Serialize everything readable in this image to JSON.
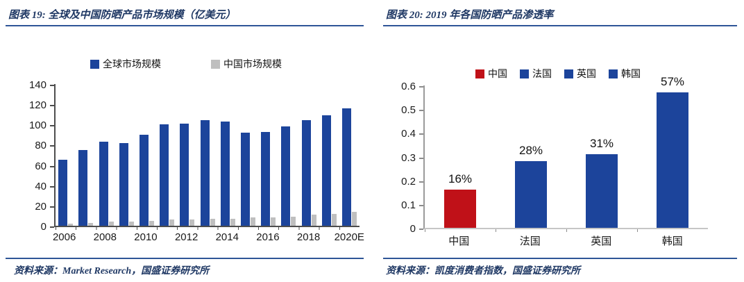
{
  "panels": [
    {
      "title": "图表 19:  全球及中国防晒产品市场规模（亿美元）",
      "source": "资料来源：Market Research，国盛证券研究所"
    },
    {
      "title": "图表 20:  2019 年各国防晒产品渗透率",
      "source": "资料来源：凯度消费者指数，国盛证券研究所"
    }
  ],
  "colors": {
    "title_text": "#1F3864",
    "rule_line": "#2E5597",
    "global_bar_blue": "#1C449B",
    "china_bar_gray": "#BFBFBF",
    "china_red": "#C01118"
  },
  "chart_data": [
    {
      "id": "market",
      "type": "bar",
      "title": "全球及中国防晒产品市场规模（亿美元）",
      "categories": [
        "2006",
        "2007",
        "2008",
        "2009",
        "2010",
        "2011",
        "2012",
        "2013",
        "2014",
        "2015",
        "2016",
        "2017",
        "2018",
        "2019",
        "2020E"
      ],
      "xtick_labels": [
        "2006",
        "",
        "2008",
        "",
        "2010",
        "",
        "2012",
        "",
        "2014",
        "",
        "2016",
        "",
        "2018",
        "",
        "2020E"
      ],
      "series": [
        {
          "name": "全球市场规模",
          "color": "#1C449B",
          "values": [
            65,
            75,
            83,
            82,
            90,
            100,
            101,
            104,
            103,
            92,
            93,
            98,
            104,
            109,
            116
          ]
        },
        {
          "name": "中国市场规模",
          "color": "#BFBFBF",
          "values": [
            2,
            3,
            4,
            4,
            5,
            6,
            6,
            7,
            7,
            8,
            8,
            9,
            11,
            12,
            14
          ]
        }
      ],
      "legend": [
        {
          "label": "全球市场规模",
          "color": "#1C449B"
        },
        {
          "label": "中国市场规模",
          "color": "#BFBFBF"
        }
      ],
      "ylim": [
        0,
        140
      ],
      "yticks": [
        0,
        20,
        40,
        60,
        80,
        100,
        120,
        140
      ],
      "ytick_labels": [
        "0",
        "20",
        "40",
        "60",
        "80",
        "100",
        "120",
        "140"
      ],
      "legend_position": "top",
      "grid": false
    },
    {
      "id": "penetration",
      "type": "bar",
      "title": "2019 年各国防晒产品渗透率",
      "categories": [
        "中国",
        "法国",
        "英国",
        "韩国"
      ],
      "values": [
        0.16,
        0.28,
        0.31,
        0.57
      ],
      "value_labels": [
        "16%",
        "28%",
        "31%",
        "57%"
      ],
      "bar_colors": [
        "#C01118",
        "#1C449B",
        "#1C449B",
        "#1C449B"
      ],
      "legend": [
        {
          "label": "中国",
          "color": "#C01118"
        },
        {
          "label": "法国",
          "color": "#1C449B"
        },
        {
          "label": "英国",
          "color": "#1C449B"
        },
        {
          "label": "韩国",
          "color": "#1C449B"
        }
      ],
      "ylim": [
        0,
        0.6
      ],
      "yticks": [
        0,
        0.1,
        0.2,
        0.3,
        0.4,
        0.5,
        0.6
      ],
      "ytick_labels": [
        "0",
        "0.1",
        "0.2",
        "0.3",
        "0.4",
        "0.5",
        "0.6"
      ],
      "legend_position": "top",
      "grid": false
    }
  ]
}
